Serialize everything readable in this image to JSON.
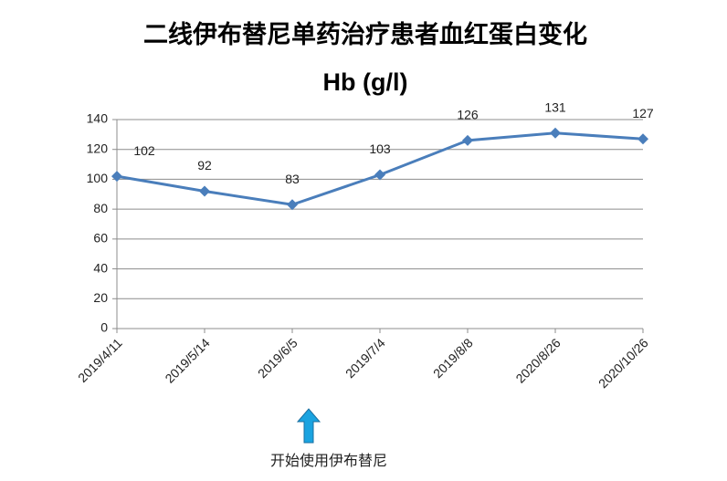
{
  "chart_data": {
    "type": "line",
    "title": "二线伊布替尼单药治疗患者血红蛋白变化",
    "subtitle": "Hb (g/l)",
    "categories": [
      "2019/4/11",
      "2019/5/14",
      "2019/6/5",
      "2019/7/4",
      "2019/8/8",
      "2020/8/26",
      "2020/10/26"
    ],
    "series": [
      {
        "name": "Hb",
        "color": "#4a7ebb",
        "values": [
          102,
          92,
          83,
          103,
          126,
          131,
          127
        ]
      }
    ],
    "ylim": [
      0,
      140
    ],
    "yticks": [
      0,
      20,
      40,
      60,
      80,
      100,
      120,
      140
    ],
    "grid": true,
    "annotation": "开始使用伊布替尼"
  }
}
